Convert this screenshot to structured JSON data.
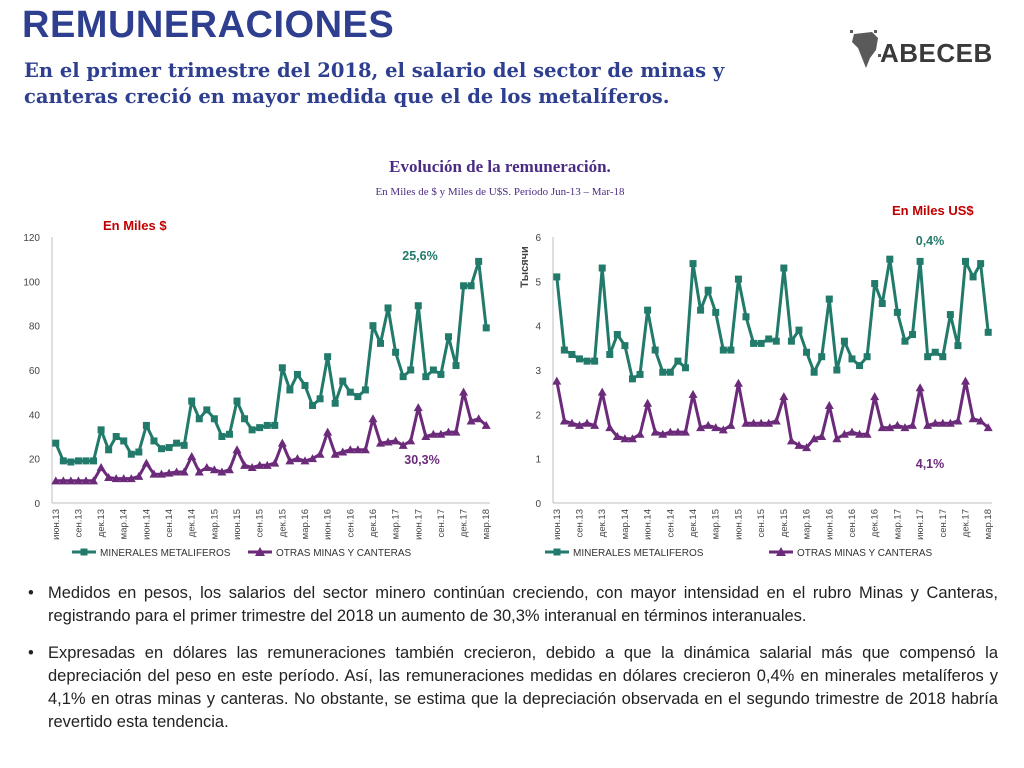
{
  "header": {
    "title": "REMUNERACIONES",
    "subtitle": "En el primer trimestre del 2018, el salario del sector de minas y canteras creció en mayor medida que el de los metalíferos.",
    "logo_text": "ABECEB"
  },
  "figure": {
    "title": "Evolución de la remuneración.",
    "subtitle": "En Miles de $ y Miles de U$S. Período Jun-13 – Mar-18",
    "left_label": "En Miles  $",
    "right_label": "En Miles US$",
    "right_axis_title": "Тысячи"
  },
  "colors": {
    "minerales": "#217a6a",
    "otras": "#6b2a7a",
    "label_red": "#c00000",
    "title_blue": "#2e3f8f"
  },
  "chart_data": [
    {
      "type": "line",
      "unit": "Miles $",
      "ylim": [
        0,
        120
      ],
      "yticks": [
        0,
        20,
        40,
        60,
        80,
        100,
        120
      ],
      "x": [
        "июн.13",
        "июл.13",
        "авг.13",
        "сен.13",
        "окт.13",
        "ноя.13",
        "дек.13",
        "янв.14",
        "фев.14",
        "мар.14",
        "апр.14",
        "май.14",
        "июн.14",
        "июл.14",
        "авг.14",
        "сен.14",
        "окт.14",
        "ноя.14",
        "дек.14",
        "янв.15",
        "фев.15",
        "мар.15",
        "апр.15",
        "май.15",
        "июн.15",
        "июл.15",
        "авг.15",
        "сен.15",
        "окт.15",
        "ноя.15",
        "дек.15",
        "янв.16",
        "фев.16",
        "мар.16",
        "апр.16",
        "май.16",
        "июн.16",
        "июл.16",
        "авг.16",
        "сен.16",
        "окт.16",
        "ноя.16",
        "дек.16",
        "янв.17",
        "фев.17",
        "мар.17",
        "апр.17",
        "май.17",
        "июн.17",
        "июл.17",
        "авг.17",
        "сен.17",
        "окт.17",
        "ноя.17",
        "дек.17",
        "янв.18",
        "фев.18",
        "мар.18"
      ],
      "xtick_labels": [
        "июн.13",
        "сен.13",
        "дек.13",
        "мар.14",
        "июн.14",
        "сен.14",
        "дек.14",
        "мар.15",
        "июн.15",
        "сен.15",
        "дек.15",
        "мар.16",
        "июн.16",
        "сен.16",
        "дек.16",
        "мар.17",
        "июн.17",
        "сен.17",
        "дек.17",
        "мар.18"
      ],
      "series": [
        {
          "name": "MINERALES METALIFEROS",
          "values": [
            27,
            19,
            18.5,
            19,
            19,
            19,
            33,
            24,
            30,
            28,
            22,
            23,
            35,
            28,
            24.5,
            25,
            27,
            26,
            46,
            38,
            42,
            38,
            30,
            31,
            46,
            38,
            33,
            34,
            35,
            35,
            61,
            51,
            58,
            53,
            44,
            47,
            66,
            45,
            55,
            50,
            48,
            51,
            80,
            72,
            88,
            68,
            57,
            60,
            89,
            57,
            60,
            58,
            75,
            62,
            98,
            98,
            109,
            79
          ]
        },
        {
          "name": "OTRAS MINAS Y CANTERAS",
          "values": [
            10,
            10,
            10,
            10,
            10,
            10,
            16,
            11.5,
            11,
            11,
            11,
            12,
            18,
            13,
            13,
            13.5,
            14,
            14,
            21,
            14,
            16,
            15,
            14,
            15,
            24,
            17,
            16,
            17,
            17,
            18,
            27,
            19,
            20,
            19,
            20,
            22,
            32,
            22,
            23,
            24,
            24,
            24,
            38,
            27,
            27.5,
            28,
            26,
            28,
            43,
            30,
            31,
            31,
            32,
            32,
            50,
            37,
            38,
            35
          ]
        }
      ],
      "annotations": [
        {
          "text": "25,6%",
          "series": "MINERALES METALIFEROS"
        },
        {
          "text": "30,3%",
          "series": "OTRAS MINAS Y CANTERAS"
        }
      ],
      "legend": "bottom"
    },
    {
      "type": "line",
      "unit": "Miles US$",
      "ylim": [
        0,
        6
      ],
      "yticks": [
        0,
        1,
        2,
        3,
        4,
        5,
        6
      ],
      "x": [
        "июн.13",
        "июл.13",
        "авг.13",
        "сен.13",
        "окт.13",
        "ноя.13",
        "дек.13",
        "янв.14",
        "фев.14",
        "мар.14",
        "апр.14",
        "май.14",
        "июн.14",
        "июл.14",
        "авг.14",
        "сен.14",
        "окт.14",
        "ноя.14",
        "дек.14",
        "янв.15",
        "фев.15",
        "мар.15",
        "апр.15",
        "май.15",
        "июн.15",
        "июл.15",
        "авг.15",
        "сен.15",
        "окт.15",
        "ноя.15",
        "дек.15",
        "янв.16",
        "фев.16",
        "мар.16",
        "апр.16",
        "май.16",
        "июн.16",
        "июл.16",
        "авг.16",
        "сен.16",
        "окт.16",
        "ноя.16",
        "дек.16",
        "янв.17",
        "фев.17",
        "мар.17",
        "апр.17",
        "май.17",
        "июн.17",
        "июл.17",
        "авг.17",
        "сен.17",
        "окт.17",
        "ноя.17",
        "дек.17",
        "янв.18",
        "фев.18",
        "мар.18"
      ],
      "xtick_labels": [
        "июн.13",
        "сен.13",
        "дек.13",
        "мар.14",
        "июн.14",
        "сен.14",
        "дек.14",
        "мар.15",
        "июн.15",
        "сен.15",
        "дек.15",
        "мар.16",
        "июн.16",
        "сен.16",
        "дек.16",
        "мар.17",
        "июн.17",
        "сен.17",
        "дек.17",
        "мар.18"
      ],
      "series": [
        {
          "name": "MINERALES METALIFEROS",
          "values": [
            5.1,
            3.45,
            3.35,
            3.25,
            3.2,
            3.2,
            5.3,
            3.35,
            3.8,
            3.55,
            2.8,
            2.9,
            4.35,
            3.45,
            2.95,
            2.95,
            3.2,
            3.05,
            5.4,
            4.35,
            4.8,
            4.3,
            3.45,
            3.45,
            5.05,
            4.2,
            3.6,
            3.6,
            3.7,
            3.65,
            5.3,
            3.65,
            3.9,
            3.4,
            2.95,
            3.3,
            4.6,
            3.0,
            3.65,
            3.25,
            3.1,
            3.3,
            4.95,
            4.5,
            5.5,
            4.3,
            3.65,
            3.8,
            5.45,
            3.3,
            3.4,
            3.3,
            4.25,
            3.55,
            5.45,
            5.1,
            5.4,
            3.85
          ]
        },
        {
          "name": "OTRAS MINAS Y CANTERAS",
          "values": [
            2.75,
            1.85,
            1.8,
            1.75,
            1.8,
            1.75,
            2.5,
            1.7,
            1.5,
            1.45,
            1.45,
            1.55,
            2.25,
            1.6,
            1.55,
            1.6,
            1.6,
            1.6,
            2.45,
            1.7,
            1.75,
            1.7,
            1.65,
            1.75,
            2.7,
            1.8,
            1.8,
            1.8,
            1.8,
            1.85,
            2.4,
            1.4,
            1.3,
            1.25,
            1.45,
            1.5,
            2.2,
            1.45,
            1.55,
            1.6,
            1.55,
            1.55,
            2.4,
            1.7,
            1.7,
            1.75,
            1.7,
            1.75,
            2.6,
            1.75,
            1.8,
            1.8,
            1.8,
            1.85,
            2.75,
            1.9,
            1.85,
            1.7
          ]
        }
      ],
      "annotations": [
        {
          "text": "0,4%",
          "series": "MINERALES METALIFEROS"
        },
        {
          "text": "4,1%",
          "series": "OTRAS MINAS Y CANTERAS"
        }
      ],
      "legend": "bottom"
    }
  ],
  "bullets": [
    "Medidos en pesos, los salarios del sector minero continúan creciendo, con mayor intensidad en el rubro Minas y Canteras, registrando para el primer trimestre del 2018 un aumento de 30,3%  interanual en términos interanuales.",
    "Expresadas en dólares las remuneraciones también crecieron, debido a que la dinámica salarial más que compensó la depreciación del peso en este período. Así, las remuneraciones medidas en dólares crecieron 0,4% en minerales metalíferos y 4,1% en otras minas y canteras. No obstante, se estima que la depreciación observada en el segundo trimestre de 2018 habría revertido esta tendencia."
  ],
  "bullet_glyph": "•"
}
